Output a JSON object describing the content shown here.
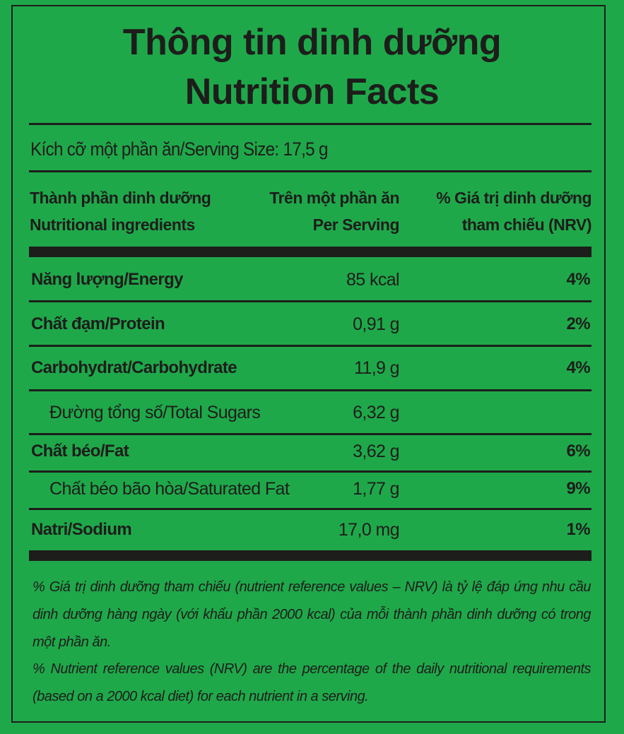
{
  "title": {
    "vietnamese": "Thông tin dinh dưỡng",
    "english": "Nutrition Facts"
  },
  "serving_size": "Kích cỡ một phần ăn/Serving Size: 17,5 g",
  "headers": {
    "ingredients": [
      "Thành phần dinh dưỡng",
      "Nutritional ingredients"
    ],
    "per_serving": [
      "Trên một phần ăn",
      "Per Serving"
    ],
    "nrv": [
      "% Giá trị dinh dưỡng",
      "tham chiếu (NRV)"
    ]
  },
  "rows": [
    {
      "name": "Năng lượng/Energy",
      "amount": "85 kcal",
      "nrv": "4%"
    },
    {
      "name": "Chất đạm/Protein",
      "amount": "0,91 g",
      "nrv": "2%"
    },
    {
      "name": "Carbohydrat/Carbohydrate",
      "amount": "11,9 g",
      "nrv": "4%"
    },
    {
      "name": "Đường tổng số/Total Sugars",
      "amount": "6,32 g",
      "nrv": ""
    },
    {
      "name": "Chất béo/Fat",
      "amount": "3,62 g",
      "nrv": "6%"
    },
    {
      "name": "Chất béo bão hòa/Saturated Fat",
      "amount": "1,77 g",
      "nrv": "9%"
    },
    {
      "name": "Natri/Sodium",
      "amount": "17,0 mg",
      "nrv": "1%"
    }
  ],
  "footnotes": {
    "vietnamese": "% Giá trị dinh dưỡng tham chiếu (nutrient reference values – NRV) là tỷ lệ đáp ứng nhu cầu dinh dưỡng hàng ngày (với khẩu phần 2000 kcal) của mỗi thành phần dinh dưỡng có trong một phần ăn.",
    "english": "% Nutrient reference values (NRV) are the percentage of the daily nutritional requirements (based on a 2000 kcal diet) for each nutrient in a serving."
  },
  "colors": {
    "background": "#1fa84a",
    "ink": "#1d1d1b"
  }
}
